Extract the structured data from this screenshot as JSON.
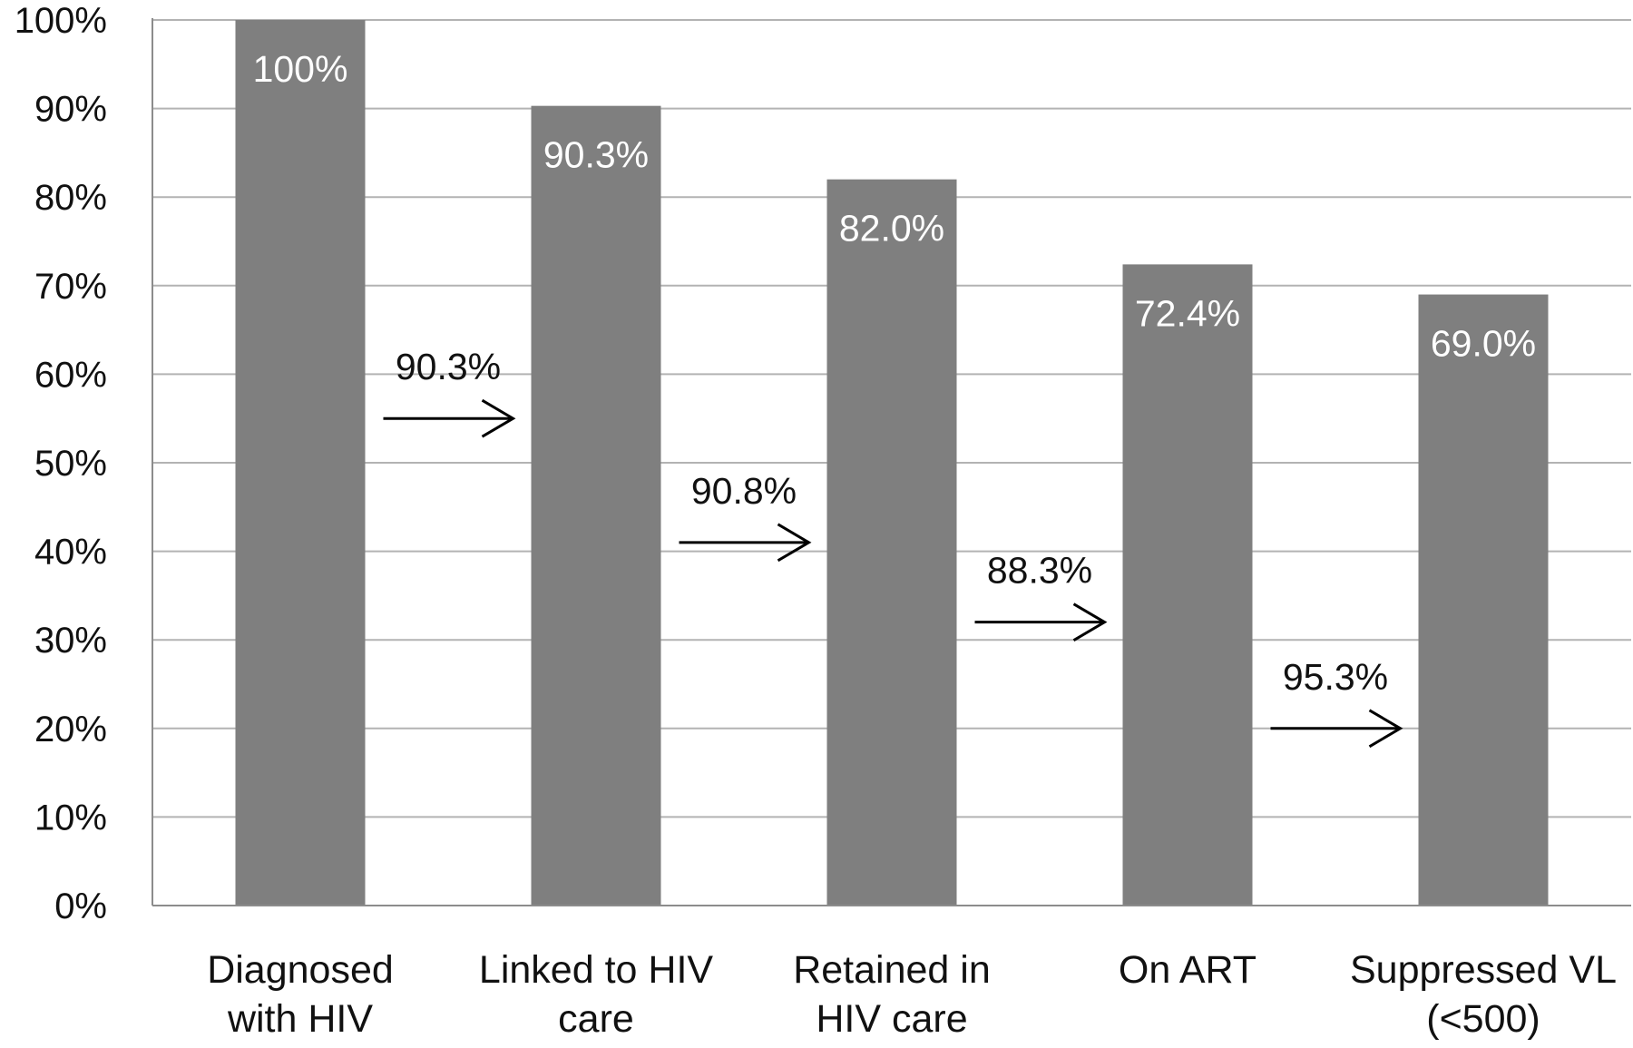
{
  "chart_data": {
    "type": "bar",
    "title": "",
    "xlabel": "",
    "ylabel": "",
    "ylim": [
      0,
      100
    ],
    "yticks": [
      "0%",
      "10%",
      "20%",
      "30%",
      "40%",
      "50%",
      "60%",
      "70%",
      "80%",
      "90%",
      "100%"
    ],
    "grid": true,
    "categories": [
      [
        "Diagnosed",
        "with HIV"
      ],
      [
        "Linked to HIV",
        "care"
      ],
      [
        "Retained in",
        "HIV care"
      ],
      [
        "On ART"
      ],
      [
        "Suppressed VL",
        "(<500)"
      ]
    ],
    "values": [
      100,
      90.3,
      82.0,
      72.4,
      69.0
    ],
    "data_labels": [
      "100%",
      "90.3%",
      "82.0%",
      "72.4%",
      "69.0%"
    ],
    "step_annotations": [
      {
        "label": "90.3%",
        "from": 0,
        "to": 1,
        "level": 55
      },
      {
        "label": "90.8%",
        "from": 1,
        "to": 2,
        "level": 41
      },
      {
        "label": "88.3%",
        "from": 2,
        "to": 3,
        "level": 32
      },
      {
        "label": "95.3%",
        "from": 3,
        "to": 4,
        "level": 20
      }
    ],
    "colors": {
      "bar": "#7f7f7f",
      "grid": "#b3b3b3",
      "axis": "#8c8c8c",
      "arrow": "#000000"
    }
  }
}
